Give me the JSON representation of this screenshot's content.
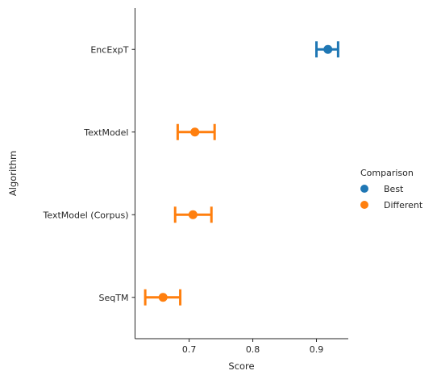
{
  "chart_data": {
    "type": "pointplot",
    "orientation": "horizontal",
    "xlabel": "Score",
    "ylabel": "Algorithm",
    "xlim": [
      0.615,
      0.95
    ],
    "xticks": [
      0.7,
      0.8,
      0.9
    ],
    "xtick_labels": [
      "0.7",
      "0.8",
      "0.9"
    ],
    "categories": [
      "EncExpT",
      "TextModel",
      "TextModel (Corpus)",
      "SeqTM"
    ],
    "points": [
      {
        "category": "EncExpT",
        "group": "Best",
        "value": 0.918,
        "ci_low": 0.9,
        "ci_high": 0.934
      },
      {
        "category": "TextModel",
        "group": "Different",
        "value": 0.709,
        "ci_low": 0.682,
        "ci_high": 0.74
      },
      {
        "category": "TextModel (Corpus)",
        "group": "Different",
        "value": 0.706,
        "ci_low": 0.678,
        "ci_high": 0.735
      },
      {
        "category": "SeqTM",
        "group": "Different",
        "value": 0.659,
        "ci_low": 0.631,
        "ci_high": 0.686
      }
    ],
    "legend": {
      "title": "Comparison",
      "placement": "right",
      "entries": [
        {
          "label": "Best",
          "color": "#1f77b4"
        },
        {
          "label": "Different",
          "color": "#ff7f0e"
        }
      ]
    },
    "grid": false
  }
}
